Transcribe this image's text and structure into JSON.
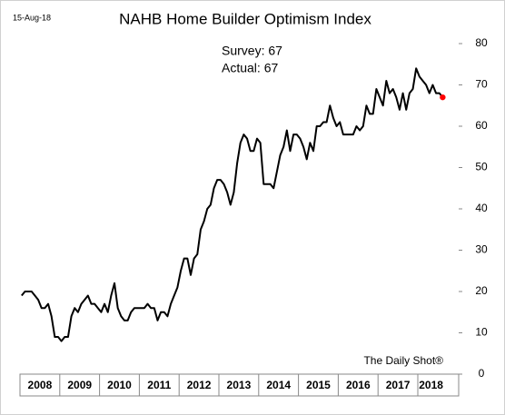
{
  "chart_data": {
    "type": "line",
    "title": "NAHB Home Builder Optimism Index",
    "date_label": "15-Aug-18",
    "annotations": [
      "Survey: 67",
      "Actual:  67"
    ],
    "source": "The Daily Shot®",
    "categories": [
      "2008",
      null,
      null,
      null,
      null,
      null,
      null,
      null,
      null,
      null,
      null,
      null,
      "2009",
      null,
      null,
      null,
      null,
      null,
      null,
      null,
      null,
      null,
      null,
      null,
      "2010",
      null,
      null,
      null,
      null,
      null,
      null,
      null,
      null,
      null,
      null,
      null,
      "2011",
      null,
      null,
      null,
      null,
      null,
      null,
      null,
      null,
      null,
      null,
      null,
      "2012",
      null,
      null,
      null,
      null,
      null,
      null,
      null,
      null,
      null,
      null,
      null,
      "2013",
      null,
      null,
      null,
      null,
      null,
      null,
      null,
      null,
      null,
      null,
      null,
      "2014",
      null,
      null,
      null,
      null,
      null,
      null,
      null,
      null,
      null,
      null,
      null,
      "2015",
      null,
      null,
      null,
      null,
      null,
      null,
      null,
      null,
      null,
      null,
      null,
      "2016",
      null,
      null,
      null,
      null,
      null,
      null,
      null,
      null,
      null,
      null,
      null,
      "2017",
      null,
      null,
      null,
      null,
      null,
      null,
      null,
      null,
      null,
      null,
      null,
      "2018",
      null,
      null,
      null,
      null,
      null,
      null,
      null
    ],
    "series": [
      {
        "color": "#000000",
        "highlight_color": "#ff0000",
        "values": [
          19,
          20,
          20,
          20,
          19,
          18,
          16,
          16,
          17,
          14,
          9,
          9,
          8,
          9,
          9,
          14,
          16,
          15,
          17,
          18,
          19,
          17,
          17,
          16,
          15,
          17,
          15,
          19,
          22,
          16,
          14,
          13,
          13,
          15,
          16,
          16,
          16,
          16,
          17,
          16,
          16,
          13,
          15,
          15,
          14,
          17,
          19,
          21,
          25,
          28,
          28,
          24,
          28,
          29,
          35,
          37,
          40,
          41,
          45,
          47,
          47,
          46,
          44,
          41,
          44,
          51,
          56,
          58,
          57,
          54,
          54,
          57,
          56,
          46,
          46,
          46,
          45,
          49,
          53,
          55,
          59,
          54,
          58,
          58,
          57,
          55,
          52,
          56,
          54,
          60,
          60,
          61,
          61,
          65,
          62,
          60,
          61,
          58,
          58,
          58,
          58,
          60,
          59,
          60,
          65,
          63,
          63,
          69,
          67,
          65,
          71,
          68,
          69,
          67,
          64,
          68,
          64,
          68,
          69,
          74,
          72,
          71,
          70,
          68,
          70,
          68,
          68,
          67
        ]
      }
    ],
    "ylim": [
      0,
      80
    ],
    "yticks": [
      0,
      10,
      20,
      30,
      40,
      50,
      60,
      70,
      80
    ]
  }
}
